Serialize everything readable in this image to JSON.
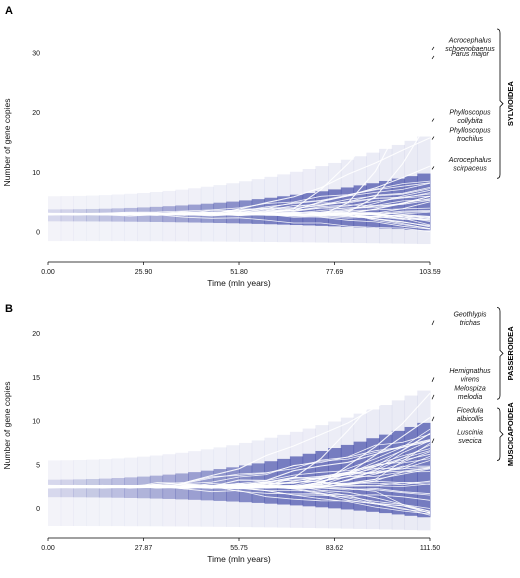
{
  "chart_data": [
    {
      "type": "area",
      "panel_label": "A",
      "xlabel": "Time (mln years)",
      "ylabel": "Number of gene copies",
      "x_ticks": [
        "0.00",
        "25.90",
        "51.80",
        "77.69",
        "103.59"
      ],
      "y_ticks": [
        "0",
        "10",
        "20",
        "30"
      ],
      "xlim": [
        0,
        103.59
      ],
      "ylim": [
        -3,
        33
      ],
      "color": "#3c45a5",
      "annotations": [
        {
          "lines": [
            "Acrocephalus",
            "schoenobaenus"
          ],
          "y": 31
        },
        {
          "lines": [
            "Parus major"
          ],
          "y": 29.5
        },
        {
          "lines": [
            "Phylloscopus",
            "collybita"
          ],
          "y": 19
        },
        {
          "lines": [
            "Phylloscopus",
            "trochilus"
          ],
          "y": 16
        },
        {
          "lines": [
            "Acrocephalus",
            "scirpaceus"
          ],
          "y": 11
        }
      ],
      "groups": [
        {
          "label": "SYLVIOIDEA",
          "y_range": [
            9,
            34
          ]
        }
      ]
    },
    {
      "type": "area",
      "panel_label": "B",
      "xlabel": "Time (mln years)",
      "ylabel": "Number of gene copies",
      "x_ticks": [
        "0.00",
        "27.87",
        "55.75",
        "83.62",
        "111.50"
      ],
      "y_ticks": [
        "0",
        "5",
        "10",
        "15",
        "20"
      ],
      "xlim": [
        0,
        111.5
      ],
      "ylim": [
        -2,
        21
      ],
      "color": "#3c45a5",
      "annotations": [
        {
          "lines": [
            "Geothlypis",
            "trichas"
          ],
          "y": 21.5
        },
        {
          "lines": [
            "Hemignathus",
            "virens"
          ],
          "y": 15
        },
        {
          "lines": [
            "Melospiza",
            "melodia"
          ],
          "y": 13
        },
        {
          "lines": [
            "Ficedula",
            "albicollis"
          ],
          "y": 10.5
        },
        {
          "lines": [
            "Luscinia",
            "svecica"
          ],
          "y": 8
        }
      ],
      "groups": [
        {
          "label": "PASSEROIDEA",
          "y_range": [
            12.5,
            23
          ]
        },
        {
          "label": "MUSCICAPOIDEA",
          "y_range": [
            5.5,
            11.5
          ]
        }
      ]
    }
  ]
}
